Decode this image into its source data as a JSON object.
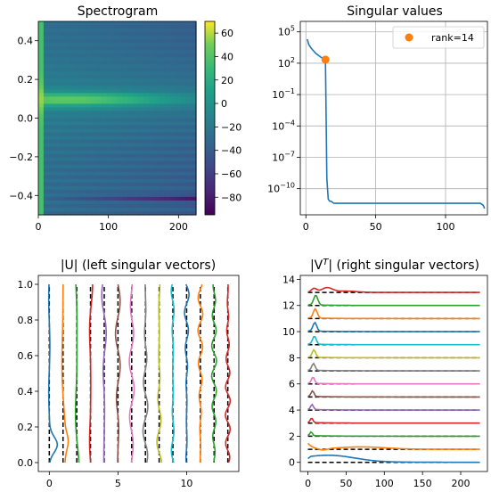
{
  "chart_data": [
    {
      "type": "heatmap",
      "title": "Spectrogram",
      "xlim": [
        0,
        225
      ],
      "ylim": [
        -0.5,
        0.5
      ],
      "xticks": [
        0,
        100,
        200
      ],
      "xtick_labels": [
        "0",
        "100",
        "200"
      ],
      "yticks": [
        0.4,
        0.2,
        0.0,
        -0.2,
        -0.4
      ],
      "ytick_labels": [
        "0.4",
        "0.2",
        "0.0",
        "−0.2",
        "−0.4"
      ],
      "colorbar": {
        "range": [
          -95,
          70
        ],
        "ticks": [
          60,
          40,
          20,
          0,
          -20,
          -40,
          -60,
          -80
        ],
        "tick_labels": [
          "60",
          "40",
          "20",
          "0",
          "−20",
          "−40",
          "−60",
          "−80"
        ],
        "colormap": "viridis"
      }
    },
    {
      "type": "line",
      "title": "Singular values",
      "yscale": "log",
      "xlim": [
        -4,
        130
      ],
      "xticks": [
        0,
        50,
        100
      ],
      "xtick_labels": [
        "0",
        "50",
        "100"
      ],
      "yticks_exp": [
        5,
        2,
        -1,
        -4,
        -7,
        -10
      ],
      "ytick_labels": [
        "10",
        "10",
        "10",
        "10",
        "10",
        "10"
      ],
      "ytick_superscripts": [
        "5",
        "2",
        "−1",
        "−4",
        "−7",
        "−10"
      ],
      "ylim_exp": [
        -12.5,
        6
      ],
      "grid": true,
      "legend": {
        "position": "top-right",
        "entries": [
          "rank=14"
        ]
      },
      "series_color": "#1f77b4",
      "marker_color": "#ff7f0e",
      "x": [
        1,
        2,
        3,
        4,
        5,
        6,
        7,
        8,
        9,
        10,
        11,
        12,
        13,
        14,
        15,
        16,
        17,
        18,
        19,
        20,
        22,
        25,
        40,
        60,
        80,
        100,
        120,
        125,
        127,
        128
      ],
      "log10_values": [
        4.3,
        3.8,
        3.6,
        3.4,
        3.25,
        3.1,
        2.95,
        2.85,
        2.75,
        2.65,
        2.55,
        2.5,
        2.42,
        2.35,
        -9.0,
        -11.0,
        -11.2,
        -11.2,
        -11.3,
        -11.4,
        -11.4,
        -11.4,
        -11.4,
        -11.4,
        -11.4,
        -11.4,
        -11.4,
        -11.4,
        -11.6,
        -11.9
      ],
      "marker": {
        "x": 14,
        "log10_value": 2.35,
        "label": "rank=14"
      }
    },
    {
      "type": "line",
      "title": "|U| (left singular vectors)",
      "xlim": [
        -0.8,
        13.8
      ],
      "ylim": [
        -0.05,
        1.05
      ],
      "xticks": [
        0,
        5,
        10
      ],
      "xtick_labels": [
        "0",
        "5",
        "10"
      ],
      "yticks": [
        0.0,
        0.2,
        0.4,
        0.6,
        0.8,
        1.0
      ],
      "ytick_labels": [
        "0.0",
        "0.2",
        "0.4",
        "0.6",
        "0.8",
        "1.0"
      ],
      "series_count": 14
    },
    {
      "type": "line",
      "title": "|V",
      "title_superscript": "T",
      "title_suffix": "| (right singular vectors)",
      "xlim": [
        -10,
        235
      ],
      "ylim": [
        -0.7,
        14.3
      ],
      "xticks": [
        0,
        50,
        100,
        150,
        200
      ],
      "xtick_labels": [
        "0",
        "50",
        "100",
        "150",
        "200"
      ],
      "yticks": [
        0,
        2,
        4,
        6,
        8,
        10,
        12,
        14
      ],
      "ytick_labels": [
        "0",
        "2",
        "4",
        "6",
        "8",
        "10",
        "12",
        "14"
      ],
      "series_count": 14
    }
  ],
  "palette": [
    "#1f77b4",
    "#ff7f0e",
    "#2ca02c",
    "#d62728",
    "#9467bd",
    "#8c564b",
    "#e377c2",
    "#7f7f7f",
    "#bcbd22",
    "#17becf"
  ]
}
